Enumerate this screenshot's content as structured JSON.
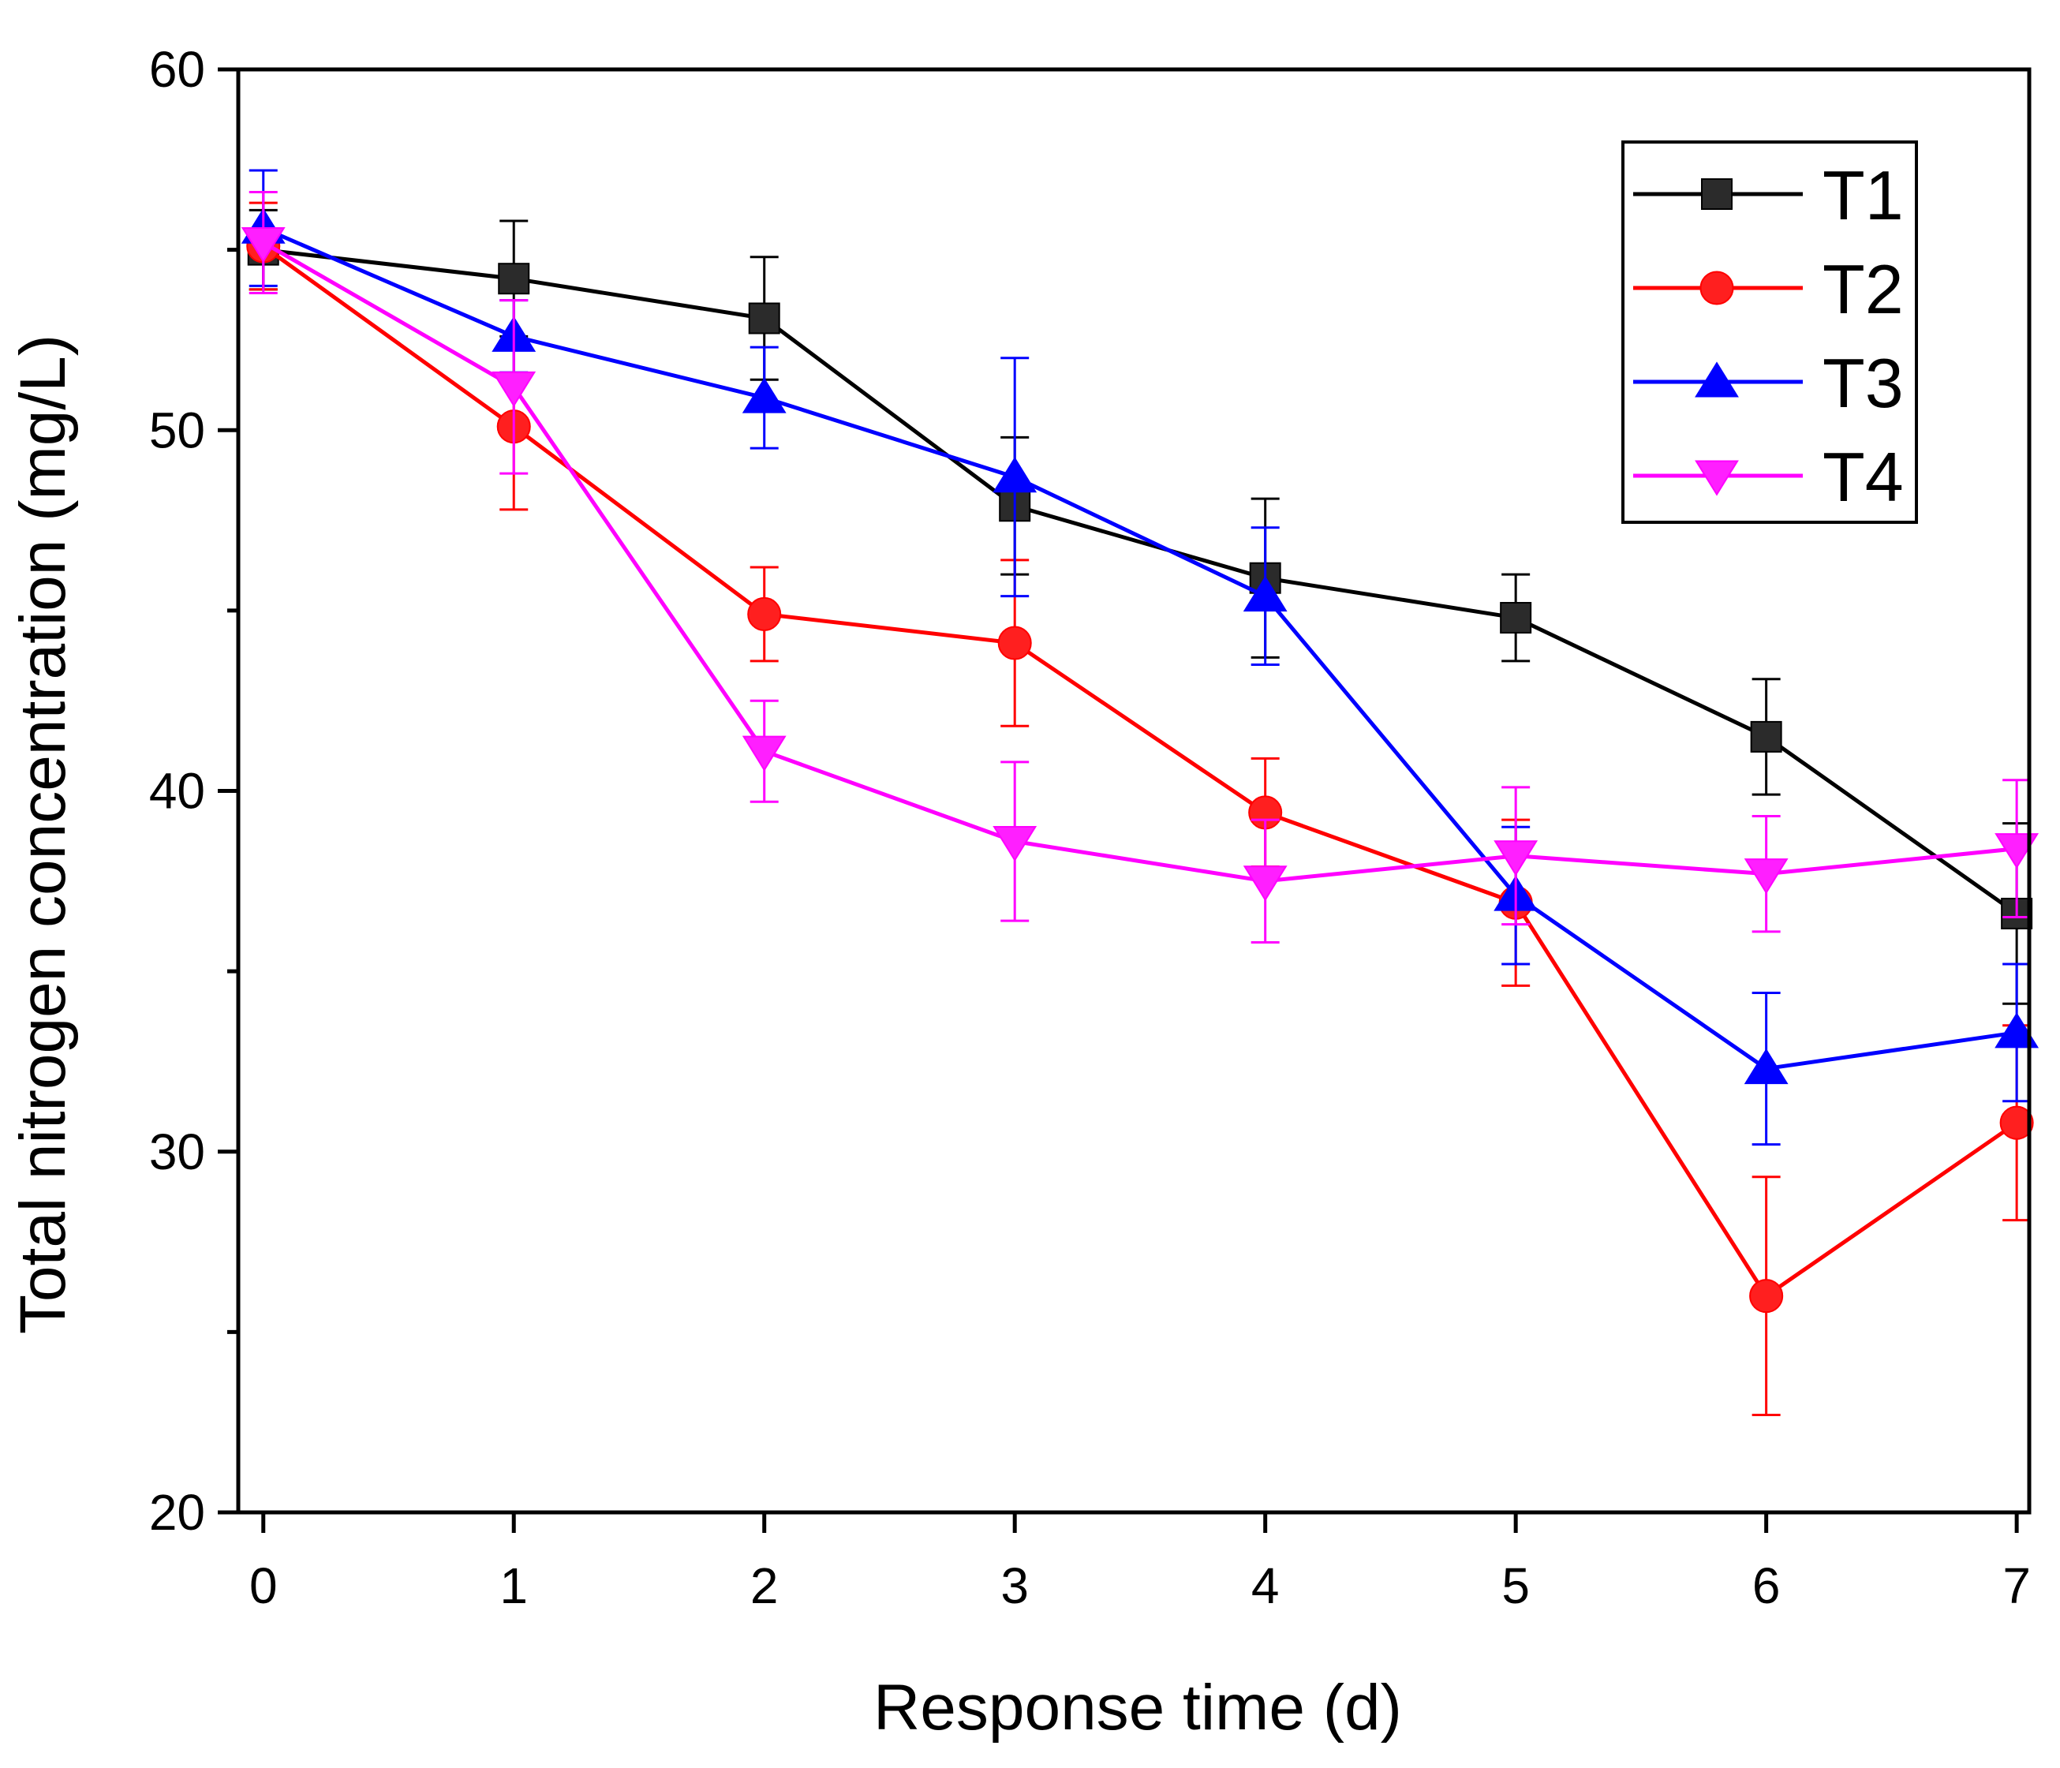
{
  "chart_data": {
    "type": "line",
    "title": "",
    "xlabel": "Response time (d)",
    "ylabel": "Total nitrogen concentration (mg/L)",
    "x": [
      0,
      1,
      2,
      3,
      4,
      5,
      6,
      7
    ],
    "x_tick_labels": [
      "0",
      "1",
      "2",
      "3",
      "4",
      "5",
      "6",
      "7"
    ],
    "y_tick_labels": [
      "20",
      "30",
      "40",
      "50",
      "60"
    ],
    "xlim": [
      -0.1,
      7.05
    ],
    "ylim": [
      20,
      60
    ],
    "grid": false,
    "legend_position": "top-right",
    "series": [
      {
        "name": "T1",
        "color": "#000000",
        "fill": "#2b2b2b",
        "marker": "square",
        "values": [
          55.0,
          54.2,
          53.1,
          47.9,
          45.9,
          44.8,
          41.5,
          36.6
        ],
        "errors": [
          1.1,
          1.6,
          1.7,
          1.9,
          2.2,
          1.2,
          1.6,
          2.5
        ]
      },
      {
        "name": "T2",
        "color": "#ff0000",
        "fill": "#ff1f1f",
        "marker": "circle",
        "values": [
          55.1,
          50.1,
          44.9,
          44.1,
          39.4,
          36.9,
          26.0,
          30.8
        ],
        "errors": [
          1.2,
          2.3,
          1.3,
          2.3,
          1.5,
          2.3,
          3.3,
          2.7
        ]
      },
      {
        "name": "T3",
        "color": "#0000ff",
        "fill": "#0000ff",
        "marker": "triangle-up",
        "values": [
          55.6,
          52.6,
          50.9,
          48.7,
          45.4,
          37.1,
          32.3,
          33.3
        ],
        "errors": [
          1.6,
          1.0,
          1.4,
          3.3,
          1.9,
          1.9,
          2.1,
          1.9
        ]
      },
      {
        "name": "T4",
        "color": "#ff00ff",
        "fill": "#ff1fff",
        "marker": "triangle-down",
        "values": [
          55.2,
          51.2,
          41.1,
          38.6,
          37.5,
          38.2,
          37.7,
          38.4
        ],
        "errors": [
          1.4,
          2.4,
          1.4,
          2.2,
          1.7,
          1.9,
          1.6,
          1.9
        ]
      }
    ]
  }
}
